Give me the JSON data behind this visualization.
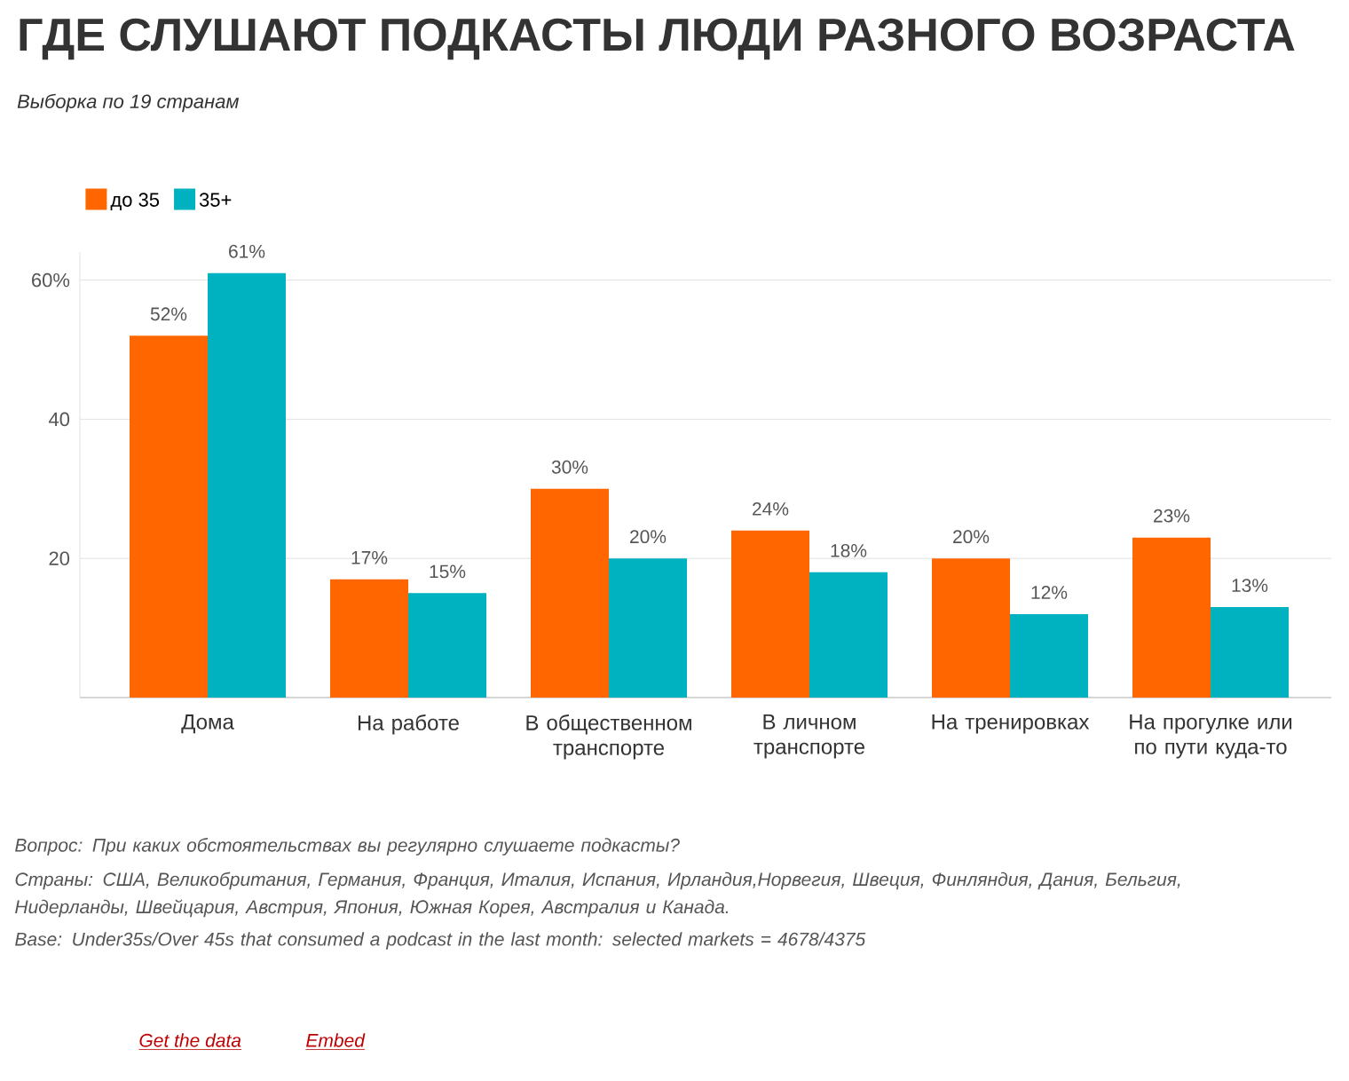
{
  "chart_data": {
    "type": "bar",
    "title": "ГДЕ СЛУШАЮТ ПОДКАСТЫ ЛЮДИ РАЗНОГО ВОЗРАСТА",
    "subtitle": "Выборка по 19 странам",
    "categories": [
      "Дома",
      "На работе",
      "В общественном транспорте",
      "В личном транспорте",
      "На тренировках",
      "На прогулке или по пути куда-то"
    ],
    "series": [
      {
        "name": "до 35",
        "color": "#ff6600",
        "values": [
          52,
          17,
          30,
          24,
          20,
          23
        ],
        "value_labels": [
          "52%",
          "17%",
          "30%",
          "24%",
          "20%",
          "23%"
        ]
      },
      {
        "name": "35+",
        "color": "#00b2bf",
        "values": [
          61,
          15,
          20,
          18,
          12,
          13
        ],
        "value_labels": [
          "61%",
          "15%",
          "20%",
          "18%",
          "12%",
          "13%"
        ]
      }
    ],
    "ylim": [
      0,
      64
    ],
    "yticks": [
      20,
      40,
      {
        "value": 60,
        "label": "60%"
      }
    ],
    "grid": "y",
    "legend": "top left",
    "annotations": [
      "Вопрос: При каких обстоятельствах вы регулярно слушаете подкасты?",
      "Страны: США, Великобритания, Германия, Франция, Италия, Испания, Ирландия,Норвегия, Швеция, Финляндия, Дания, Бельгия, Нидерланды, Швейцария, Австрия, Япония, Южная Корея, Австралия и Канада.",
      "Base: Under35s/Over 45s that consumed a podcast in the last month: selected markets = 4678/4375",
      "Get the data",
      "Embed"
    ]
  }
}
